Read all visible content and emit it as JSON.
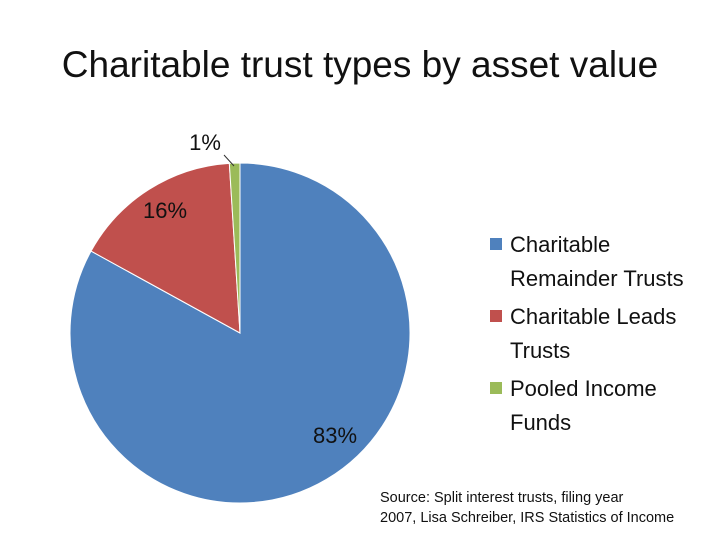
{
  "chart_data": {
    "type": "pie",
    "title": "Charitable trust types by asset value",
    "categories": [
      "Charitable Remainder Trusts",
      "Charitable Leads Trusts",
      "Pooled Income Funds"
    ],
    "values": [
      83,
      16,
      1
    ],
    "data_labels": [
      "83%",
      "16%",
      "1%"
    ],
    "colors": [
      "#4F81BD",
      "#C0504D",
      "#9BBB59"
    ],
    "legend_labels": [
      [
        "Charitable",
        "Remainder Trusts"
      ],
      [
        "Charitable Leads",
        "Trusts"
      ],
      [
        "Pooled Income",
        "Funds"
      ]
    ],
    "legend_position": "right",
    "source": [
      "Source: Split interest trusts, filing year",
      "2007, Lisa Schreiber, IRS Statistics of Income"
    ]
  }
}
